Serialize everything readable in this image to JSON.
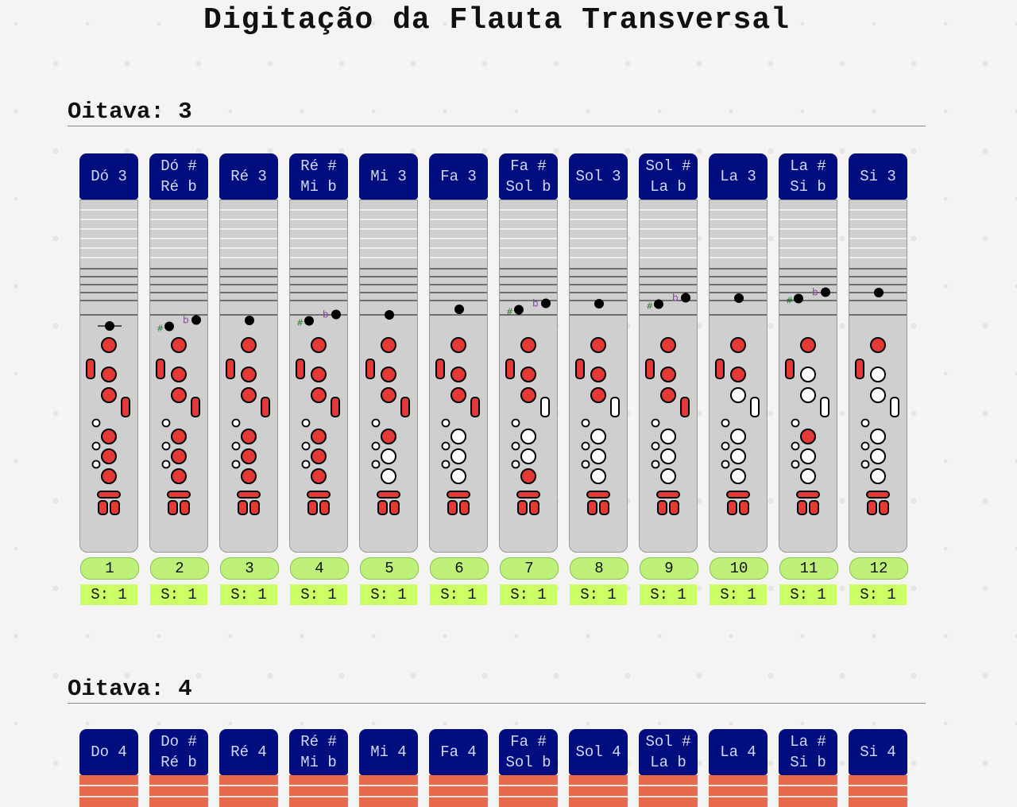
{
  "page": {
    "title": "Digitação da Flauta Transversal"
  },
  "colors": {
    "header_bg": "#000d7e",
    "hole_closed": "#e53935",
    "hole_open": "#ffffff",
    "badge": "#bff07a",
    "octave4_body": "#e8694b"
  },
  "octaves": [
    {
      "label": "Oitava: 3",
      "notes": [
        {
          "l1": "Dó 3",
          "l2": "",
          "num": "1",
          "score": "S: 1",
          "step": 0,
          "acc": "",
          "holes": "1111111111"
        },
        {
          "l1": "Dó #",
          "l2": "Ré b",
          "num": "2",
          "score": "S: 1",
          "step": 0.5,
          "acc": "sharpflat",
          "holes": "1111111111"
        },
        {
          "l1": "Ré 3",
          "l2": "",
          "num": "3",
          "score": "S: 1",
          "step": 1,
          "acc": "",
          "holes": "1111111111"
        },
        {
          "l1": "Ré #",
          "l2": "Mi b",
          "num": "4",
          "score": "S: 1",
          "step": 1.5,
          "acc": "sharpflat",
          "holes": "1111111111"
        },
        {
          "l1": "Mi 3",
          "l2": "",
          "num": "5",
          "score": "S: 1",
          "step": 2,
          "acc": "",
          "holes": "1111110011"
        },
        {
          "l1": "Fa 3",
          "l2": "",
          "num": "6",
          "score": "S: 1",
          "step": 3,
          "acc": "",
          "holes": "1111100011"
        },
        {
          "l1": "Fa #",
          "l2": "Sol b",
          "num": "7",
          "score": "S: 1",
          "step": 3.5,
          "acc": "sharpflat",
          "holes": "1111000111"
        },
        {
          "l1": "Sol 3",
          "l2": "",
          "num": "8",
          "score": "S: 1",
          "step": 4,
          "acc": "",
          "holes": "1111000011"
        },
        {
          "l1": "Sol #",
          "l2": "La b",
          "num": "9",
          "score": "S: 1",
          "step": 4.5,
          "acc": "sharpflat",
          "holes": "1111100011"
        },
        {
          "l1": "La 3",
          "l2": "",
          "num": "10",
          "score": "S: 1",
          "step": 5,
          "acc": "",
          "holes": "1110000011"
        },
        {
          "l1": "La #",
          "l2": "Si b",
          "num": "11",
          "score": "S: 1",
          "step": 5.5,
          "acc": "sharpflat",
          "holes": "1100010011"
        },
        {
          "l1": "Si 3",
          "l2": "",
          "num": "12",
          "score": "S: 1",
          "step": 6,
          "acc": "",
          "holes": "1100000011"
        }
      ]
    },
    {
      "label": "Oitava: 4",
      "notes": [
        {
          "l1": "Do 4",
          "l2": ""
        },
        {
          "l1": "Do #",
          "l2": "Ré b"
        },
        {
          "l1": "Ré 4",
          "l2": ""
        },
        {
          "l1": "Ré #",
          "l2": "Mi b"
        },
        {
          "l1": "Mi 4",
          "l2": ""
        },
        {
          "l1": "Fa 4",
          "l2": ""
        },
        {
          "l1": "Fa #",
          "l2": "Sol b"
        },
        {
          "l1": "Sol 4",
          "l2": ""
        },
        {
          "l1": "Sol #",
          "l2": "La b"
        },
        {
          "l1": "La 4",
          "l2": ""
        },
        {
          "l1": "La #",
          "l2": "Si b"
        },
        {
          "l1": "Si 4",
          "l2": ""
        }
      ]
    }
  ]
}
